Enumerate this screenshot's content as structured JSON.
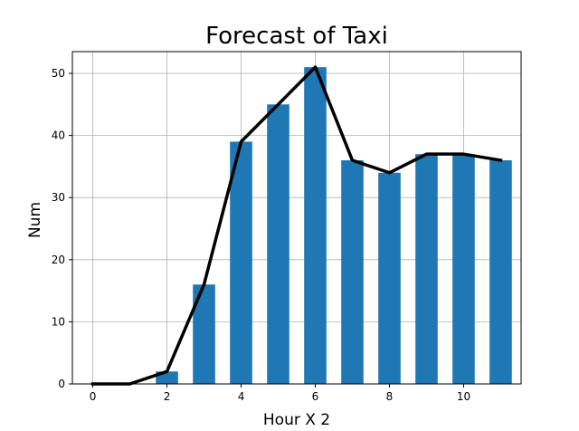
{
  "chart_data": {
    "type": "bar",
    "title": "Forecast of Taxi",
    "xlabel": "Hour X 2",
    "ylabel": "Num",
    "x": [
      0,
      1,
      2,
      3,
      4,
      5,
      6,
      7,
      8,
      9,
      10,
      11
    ],
    "xlim": [
      -0.55,
      11.55
    ],
    "ylim": [
      0,
      53.5
    ],
    "xticks": [
      0,
      2,
      4,
      6,
      8,
      10
    ],
    "yticks": [
      0,
      10,
      20,
      30,
      40,
      50
    ],
    "grid": true,
    "bar_width": 0.6,
    "series": [
      {
        "kind": "bar",
        "color": "#1f77b4",
        "values": [
          0,
          0,
          2,
          16,
          39,
          45,
          51,
          36,
          34,
          37,
          37,
          36
        ]
      },
      {
        "kind": "line",
        "color": "#000000",
        "values": [
          0,
          0,
          2,
          16,
          39,
          45,
          51,
          36,
          34,
          37,
          37,
          36
        ]
      }
    ]
  }
}
